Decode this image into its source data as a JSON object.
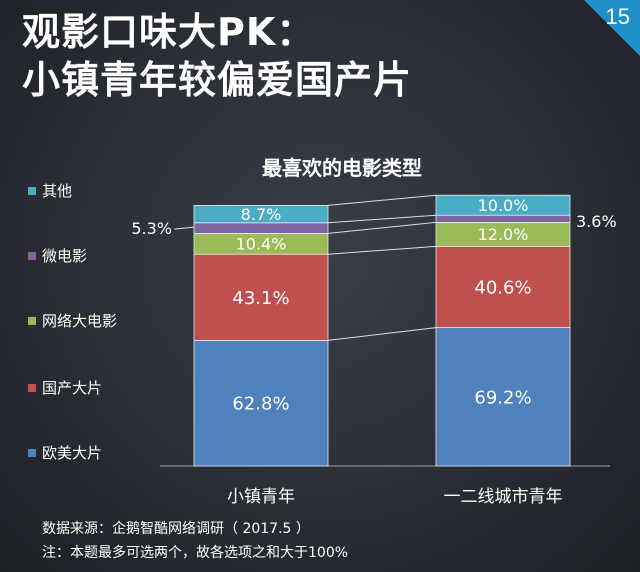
{
  "title": {
    "line1": "观影口味大PK：",
    "line2": "小镇青年较偏爱国产片"
  },
  "page_number": "15",
  "colors": {
    "accent": "#1e8fc7",
    "欧美大片": "#4f81bd",
    "国产大片": "#c0504d",
    "网络大电影": "#9bbb59",
    "微电影": "#8064a2",
    "其他": "#4bacc6"
  },
  "chart_data": {
    "type": "bar",
    "stacked": true,
    "title": "最喜欢的电影类型",
    "categories": [
      "小镇青年",
      "一二线城市青年"
    ],
    "series": [
      {
        "name": "欧美大片",
        "values": [
          62.8,
          69.2
        ],
        "labels": [
          "62.8%",
          "69.2%"
        ]
      },
      {
        "name": "国产大片",
        "values": [
          43.1,
          40.6
        ],
        "labels": [
          "43.1%",
          "40.6%"
        ]
      },
      {
        "name": "网络大电影",
        "values": [
          10.4,
          12.0
        ],
        "labels": [
          "10.4%",
          "12.0%"
        ]
      },
      {
        "name": "微电影",
        "values": [
          5.3,
          3.6
        ],
        "labels": [
          "5.3%",
          "3.6%"
        ]
      },
      {
        "name": "其他",
        "values": [
          8.7,
          10.0
        ],
        "labels": [
          "8.7%",
          "10.0%"
        ]
      }
    ],
    "legend_order": [
      "其他",
      "微电影",
      "网络大电影",
      "国产大片",
      "欧美大片"
    ],
    "legend_position": "left"
  },
  "footnotes": {
    "source": "数据来源：企鹅智酷网络调研（ 2017.5 ）",
    "note": "注：本题最多可选两个，故各选项之和大于100%"
  }
}
